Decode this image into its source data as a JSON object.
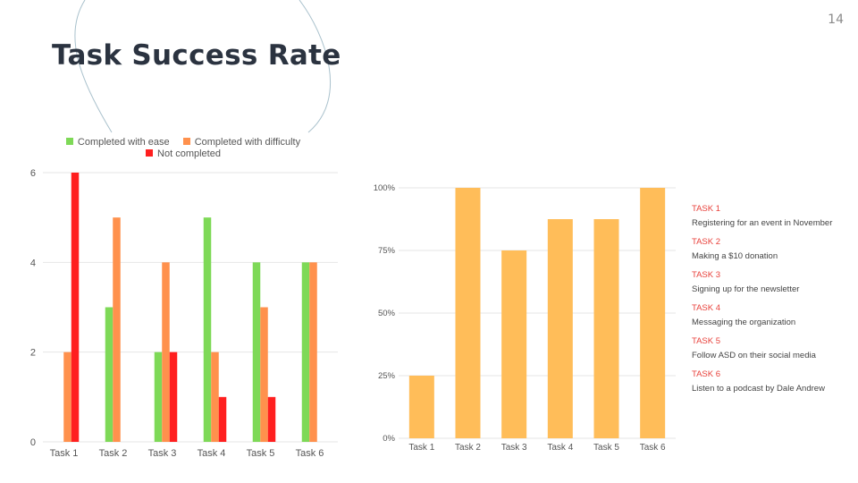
{
  "page": {
    "number": "14",
    "title": "Task Success Rate"
  },
  "colors": {
    "ease": "#7ed957",
    "difficulty": "#ff914d",
    "not_completed": "#ff1f1f",
    "success": "#ffbd59",
    "grid": "#e6e6e6",
    "axis_text": "#555555",
    "task_label": "#e8423c"
  },
  "chart_data": [
    {
      "type": "bar",
      "title": "",
      "xlabel": "",
      "ylabel": "",
      "categories": [
        "Task 1",
        "Task 2",
        "Task 3",
        "Task 4",
        "Task 5",
        "Task 6"
      ],
      "series": [
        {
          "name": "Completed with ease",
          "values": [
            0,
            3,
            2,
            5,
            4,
            4
          ]
        },
        {
          "name": "Completed with difficulty",
          "values": [
            2,
            5,
            4,
            2,
            3,
            4
          ]
        },
        {
          "name": "Not completed",
          "values": [
            6,
            0,
            2,
            1,
            1,
            0
          ]
        }
      ],
      "ylim": [
        0,
        6
      ],
      "yticks": [
        "0",
        "2",
        "4",
        "6"
      ],
      "grid": true,
      "legend": "top"
    },
    {
      "type": "bar",
      "title": "",
      "xlabel": "",
      "ylabel": "",
      "categories": [
        "Task 1",
        "Task 2",
        "Task 3",
        "Task 4",
        "Task 5",
        "Task 6"
      ],
      "values": [
        25,
        100,
        75,
        87.5,
        87.5,
        100
      ],
      "ylim": [
        0,
        100
      ],
      "yticks": [
        "0%",
        "25%",
        "50%",
        "75%",
        "100%"
      ],
      "grid": true,
      "legend": "none"
    }
  ],
  "tasks": [
    {
      "label": "TASK 1",
      "description": "Registering for an event in November"
    },
    {
      "label": "TASK 2",
      "description": "Making a $10 donation"
    },
    {
      "label": "TASK 3",
      "description": "Signing up for the newsletter"
    },
    {
      "label": "TASK 4",
      "description": "Messaging the organization"
    },
    {
      "label": "TASK 5",
      "description": "Follow ASD on their social media"
    },
    {
      "label": "TASK 6",
      "description": "Listen to a podcast by Dale Andrew"
    }
  ]
}
